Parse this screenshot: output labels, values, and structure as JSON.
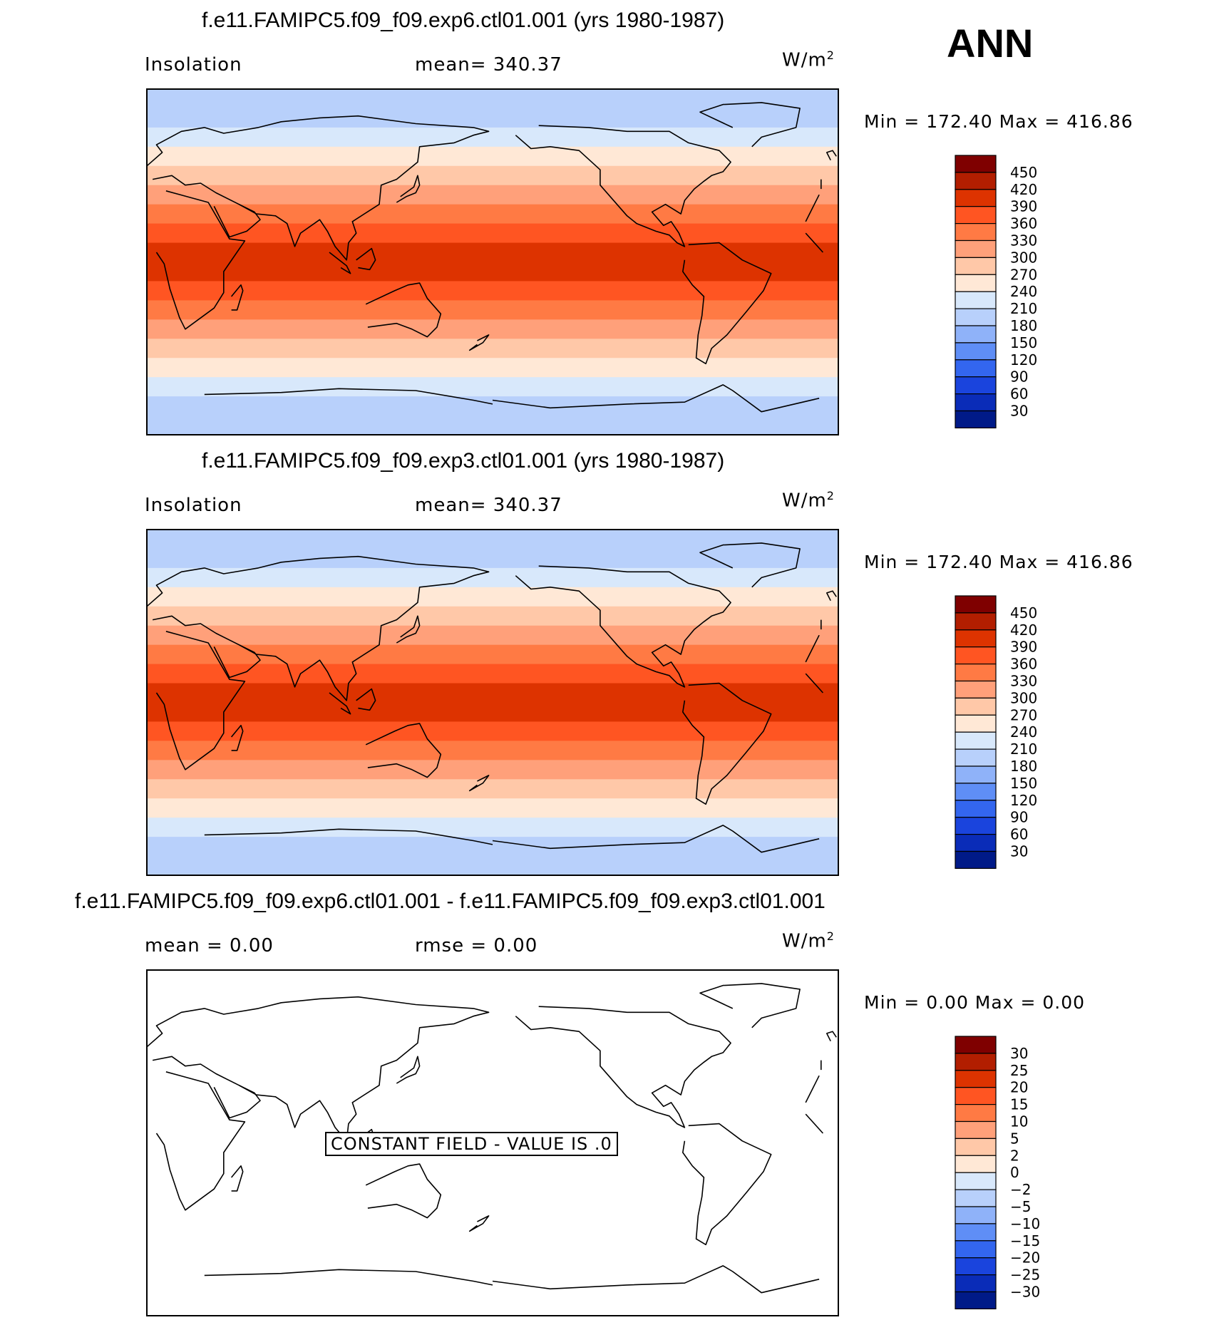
{
  "season": "ANN",
  "units_base": "W/m",
  "units_exp": "2",
  "panels": [
    {
      "title": "f.e11.FAMIPC5.f09_f09.exp6.ctl01.001 (yrs 1980-1987)",
      "left_label": "Insolation",
      "stat_label": "mean= 340.37",
      "minmax": "Min  =  172.40  Max  =  416.86"
    },
    {
      "title": "f.e11.FAMIPC5.f09_f09.exp3.ctl01.001 (yrs 1980-1987)",
      "left_label": "Insolation",
      "stat_label": "mean= 340.37",
      "minmax": "Min  =  172.40  Max  =  416.86"
    },
    {
      "title": "f.e11.FAMIPC5.f09_f09.exp6.ctl01.001 - f.e11.FAMIPC5.f09_f09.exp3.ctl01.001",
      "left_label": "mean =     0.00",
      "stat_label": "rmse =     0.00",
      "minmax": "Min  =      0.00  Max  =      0.00",
      "constant_note": "CONSTANT FIELD - VALUE IS .0"
    }
  ],
  "chart_data": [
    {
      "type": "heatmap",
      "title": "f.e11.FAMIPC5.f09_f09.exp6.ctl01.001 (yrs 1980-1987)",
      "variable": "Insolation",
      "units": "W/m2",
      "mean": 340.37,
      "min": 172.4,
      "max": 416.86,
      "lat_bands_north_to_south": [
        {
          "value": 185
        },
        {
          "value": 200
        },
        {
          "value": 225
        },
        {
          "value": 255
        },
        {
          "value": 285
        },
        {
          "value": 315
        },
        {
          "value": 345
        },
        {
          "value": 375
        },
        {
          "value": 405
        },
        {
          "value": 405
        },
        {
          "value": 375
        },
        {
          "value": 345
        },
        {
          "value": 315
        },
        {
          "value": 285
        },
        {
          "value": 255
        },
        {
          "value": 225
        },
        {
          "value": 200
        },
        {
          "value": 185
        }
      ],
      "colorbar_levels": [
        "450",
        "420",
        "390",
        "360",
        "330",
        "300",
        "270",
        "240",
        "210",
        "180",
        "150",
        "120",
        "90",
        "60",
        "30"
      ]
    },
    {
      "type": "heatmap",
      "title": "f.e11.FAMIPC5.f09_f09.exp3.ctl01.001 (yrs 1980-1987)",
      "variable": "Insolation",
      "units": "W/m2",
      "mean": 340.37,
      "min": 172.4,
      "max": 416.86,
      "lat_bands_north_to_south": [
        {
          "value": 185
        },
        {
          "value": 200
        },
        {
          "value": 225
        },
        {
          "value": 255
        },
        {
          "value": 285
        },
        {
          "value": 315
        },
        {
          "value": 345
        },
        {
          "value": 375
        },
        {
          "value": 405
        },
        {
          "value": 405
        },
        {
          "value": 375
        },
        {
          "value": 345
        },
        {
          "value": 315
        },
        {
          "value": 285
        },
        {
          "value": 255
        },
        {
          "value": 225
        },
        {
          "value": 200
        },
        {
          "value": 185
        }
      ],
      "colorbar_levels": [
        "450",
        "420",
        "390",
        "360",
        "330",
        "300",
        "270",
        "240",
        "210",
        "180",
        "150",
        "120",
        "90",
        "60",
        "30"
      ]
    },
    {
      "type": "heatmap",
      "title": "f.e11.FAMIPC5.f09_f09.exp6.ctl01.001 - f.e11.FAMIPC5.f09_f09.exp3.ctl01.001",
      "variable": "difference",
      "units": "W/m2",
      "mean": 0.0,
      "rmse": 0.0,
      "min": 0.0,
      "max": 0.0,
      "constant_value": 0,
      "colorbar_levels": [
        "30",
        "25",
        "20",
        "15",
        "10",
        "5",
        "2",
        "0",
        "−2",
        "−5",
        "−10",
        "−15",
        "−20",
        "−25",
        "−30"
      ]
    }
  ],
  "colors": {
    "scale": [
      "#7f0000",
      "#b21e00",
      "#dd3300",
      "#ff5522",
      "#ff7a44",
      "#ffa07a",
      "#ffc8a8",
      "#ffe8d6",
      "#d8e8fb",
      "#b8d0fb",
      "#8fb2f9",
      "#5f8ef6",
      "#3366ef",
      "#1a44dd",
      "#0a2cb8",
      "#001a88"
    ]
  }
}
